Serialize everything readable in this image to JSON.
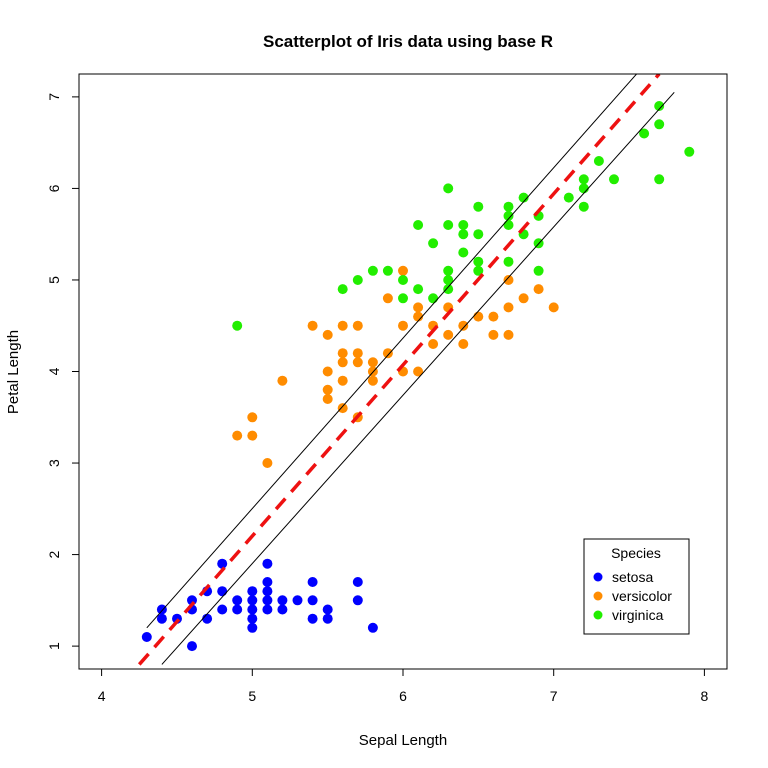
{
  "chart_data": {
    "type": "scatter",
    "title": "Scatterplot of Iris data using base R",
    "xlabel": "Sepal Length",
    "ylabel": "Petal Length",
    "xlim": [
      3.85,
      8.15
    ],
    "ylim": [
      0.75,
      7.25
    ],
    "xticks": [
      "4",
      "5",
      "6",
      "7",
      "8"
    ],
    "yticks": [
      "1",
      "2",
      "3",
      "4",
      "5",
      "6",
      "7"
    ],
    "grid": false,
    "legend": {
      "title": "Species",
      "position": "bottom-right",
      "entries": [
        "setosa",
        "versicolor",
        "virginica"
      ]
    },
    "colors": {
      "setosa": "#0000ff",
      "versicolor": "#ff8c00",
      "virginica": "#22ee00",
      "fit_line": "#ee1111",
      "band_lines": "#000000"
    },
    "series": [
      {
        "name": "setosa",
        "points": [
          [
            4.3,
            1.1
          ],
          [
            4.4,
            1.3
          ],
          [
            4.4,
            1.4
          ],
          [
            4.5,
            1.3
          ],
          [
            4.6,
            1.0
          ],
          [
            4.6,
            1.4
          ],
          [
            4.6,
            1.5
          ],
          [
            4.7,
            1.3
          ],
          [
            4.7,
            1.6
          ],
          [
            4.8,
            1.4
          ],
          [
            4.8,
            1.6
          ],
          [
            4.8,
            1.9
          ],
          [
            4.9,
            1.4
          ],
          [
            4.9,
            1.5
          ],
          [
            5.0,
            1.2
          ],
          [
            5.0,
            1.3
          ],
          [
            5.0,
            1.4
          ],
          [
            5.0,
            1.5
          ],
          [
            5.0,
            1.6
          ],
          [
            5.1,
            1.4
          ],
          [
            5.1,
            1.5
          ],
          [
            5.1,
            1.7
          ],
          [
            5.1,
            1.9
          ],
          [
            5.1,
            1.6
          ],
          [
            5.2,
            1.4
          ],
          [
            5.2,
            1.5
          ],
          [
            5.3,
            1.5
          ],
          [
            5.4,
            1.3
          ],
          [
            5.4,
            1.5
          ],
          [
            5.4,
            1.7
          ],
          [
            5.5,
            1.3
          ],
          [
            5.5,
            1.4
          ],
          [
            5.7,
            1.5
          ],
          [
            5.7,
            1.7
          ],
          [
            5.8,
            1.2
          ]
        ]
      },
      {
        "name": "versicolor",
        "points": [
          [
            4.9,
            3.3
          ],
          [
            5.0,
            3.3
          ],
          [
            5.0,
            3.5
          ],
          [
            5.1,
            3.0
          ],
          [
            5.2,
            3.9
          ],
          [
            5.4,
            4.5
          ],
          [
            5.5,
            3.7
          ],
          [
            5.5,
            3.8
          ],
          [
            5.5,
            4.0
          ],
          [
            5.5,
            4.4
          ],
          [
            5.6,
            3.6
          ],
          [
            5.6,
            3.9
          ],
          [
            5.6,
            4.1
          ],
          [
            5.6,
            4.2
          ],
          [
            5.6,
            4.5
          ],
          [
            5.7,
            3.5
          ],
          [
            5.7,
            4.1
          ],
          [
            5.7,
            4.2
          ],
          [
            5.7,
            4.5
          ],
          [
            5.8,
            3.9
          ],
          [
            5.8,
            4.0
          ],
          [
            5.8,
            4.1
          ],
          [
            5.9,
            4.2
          ],
          [
            5.9,
            4.8
          ],
          [
            6.0,
            4.0
          ],
          [
            6.0,
            4.5
          ],
          [
            6.0,
            5.1
          ],
          [
            6.1,
            4.0
          ],
          [
            6.1,
            4.6
          ],
          [
            6.1,
            4.7
          ],
          [
            6.2,
            4.3
          ],
          [
            6.2,
            4.5
          ],
          [
            6.3,
            4.4
          ],
          [
            6.3,
            4.7
          ],
          [
            6.4,
            4.3
          ],
          [
            6.4,
            4.5
          ],
          [
            6.5,
            4.6
          ],
          [
            6.6,
            4.4
          ],
          [
            6.6,
            4.6
          ],
          [
            6.7,
            4.4
          ],
          [
            6.7,
            4.7
          ],
          [
            6.7,
            5.0
          ],
          [
            6.8,
            4.8
          ],
          [
            6.9,
            4.9
          ],
          [
            7.0,
            4.7
          ]
        ]
      },
      {
        "name": "virginica",
        "points": [
          [
            4.9,
            4.5
          ],
          [
            5.6,
            4.9
          ],
          [
            5.7,
            5.0
          ],
          [
            5.8,
            5.1
          ],
          [
            5.9,
            5.1
          ],
          [
            6.0,
            4.8
          ],
          [
            6.0,
            5.0
          ],
          [
            6.1,
            4.9
          ],
          [
            6.1,
            5.6
          ],
          [
            6.2,
            4.8
          ],
          [
            6.2,
            5.4
          ],
          [
            6.3,
            4.9
          ],
          [
            6.3,
            5.0
          ],
          [
            6.3,
            5.1
          ],
          [
            6.3,
            5.6
          ],
          [
            6.3,
            6.0
          ],
          [
            6.4,
            5.3
          ],
          [
            6.4,
            5.5
          ],
          [
            6.4,
            5.6
          ],
          [
            6.5,
            5.1
          ],
          [
            6.5,
            5.2
          ],
          [
            6.5,
            5.5
          ],
          [
            6.5,
            5.8
          ],
          [
            6.7,
            5.2
          ],
          [
            6.7,
            5.6
          ],
          [
            6.7,
            5.7
          ],
          [
            6.7,
            5.8
          ],
          [
            6.8,
            5.5
          ],
          [
            6.8,
            5.9
          ],
          [
            6.9,
            5.1
          ],
          [
            6.9,
            5.4
          ],
          [
            6.9,
            5.7
          ],
          [
            7.1,
            5.9
          ],
          [
            7.2,
            5.8
          ],
          [
            7.2,
            6.0
          ],
          [
            7.2,
            6.1
          ],
          [
            7.3,
            6.3
          ],
          [
            7.4,
            6.1
          ],
          [
            7.6,
            6.6
          ],
          [
            7.7,
            6.1
          ],
          [
            7.7,
            6.7
          ],
          [
            7.7,
            6.9
          ],
          [
            7.9,
            6.4
          ]
        ]
      }
    ],
    "fit_line": {
      "from": [
        4.25,
        0.8
      ],
      "to": [
        7.7,
        7.25
      ],
      "style": "dashed"
    },
    "band_lines": [
      {
        "from": [
          4.3,
          1.2
        ],
        "to": [
          7.55,
          7.25
        ]
      },
      {
        "from": [
          4.4,
          0.8
        ],
        "to": [
          7.8,
          7.05
        ]
      }
    ]
  }
}
